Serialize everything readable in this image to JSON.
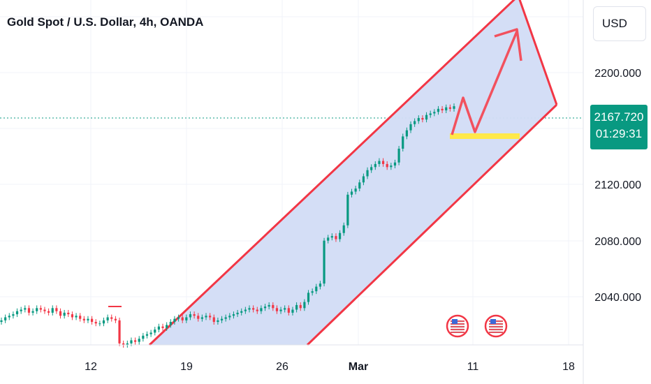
{
  "header": {
    "title": "Gold Spot / U.S. Dollar, 4h, OANDA",
    "currency": "USD"
  },
  "last_price": {
    "value": "2167.720",
    "countdown": "01:29:31",
    "color": "#089981"
  },
  "colors": {
    "up": "#089981",
    "down": "#f23645",
    "channel_fill": "#d2dcf5",
    "channel_edge": "#f23645",
    "support": "#ffe94a",
    "arrow": "#f2515e"
  },
  "chart_data": {
    "type": "candlestick",
    "x_ticks": [
      "12",
      "19",
      "26",
      "Mar",
      "11",
      "18"
    ],
    "y_ticks": [
      "2200.000",
      "2120.000",
      "2080.000",
      "2040.000"
    ],
    "ylim": [
      2012,
      2237
    ],
    "series_close": [
      2028,
      2030,
      2031,
      2032,
      2034,
      2035,
      2036,
      2033,
      2034,
      2036,
      2035,
      2034,
      2033,
      2036,
      2034,
      2031,
      2033,
      2032,
      2030,
      2031,
      2029,
      2028,
      2029,
      2027,
      2026,
      2026,
      2028,
      2030,
      2029,
      2028,
      2013,
      2012,
      2013,
      2015,
      2014,
      2016,
      2018,
      2019,
      2020,
      2022,
      2024,
      2023,
      2025,
      2027,
      2029,
      2030,
      2028,
      2030,
      2032,
      2031,
      2029,
      2030,
      2031,
      2030,
      2027,
      2028,
      2029,
      2030,
      2031,
      2032,
      2033,
      2034,
      2035,
      2036,
      2035,
      2034,
      2036,
      2037,
      2038,
      2036,
      2034,
      2035,
      2036,
      2033,
      2035,
      2038,
      2036,
      2040,
      2046,
      2047,
      2050,
      2052,
      2080,
      2082,
      2083,
      2081,
      2085,
      2090,
      2110,
      2112,
      2114,
      2118,
      2122,
      2126,
      2128,
      2130,
      2132,
      2130,
      2128,
      2129,
      2131,
      2140,
      2148,
      2152,
      2156,
      2158,
      2160,
      2159,
      2162,
      2163,
      2164,
      2166,
      2165,
      2167,
      2166,
      2167.72
    ],
    "annotations": [
      "ascending-channel",
      "support-level",
      "projection-arrow",
      "us-event-flags"
    ]
  },
  "flags": [
    {
      "name": "us-event-flag-1"
    },
    {
      "name": "us-event-flag-2"
    }
  ]
}
